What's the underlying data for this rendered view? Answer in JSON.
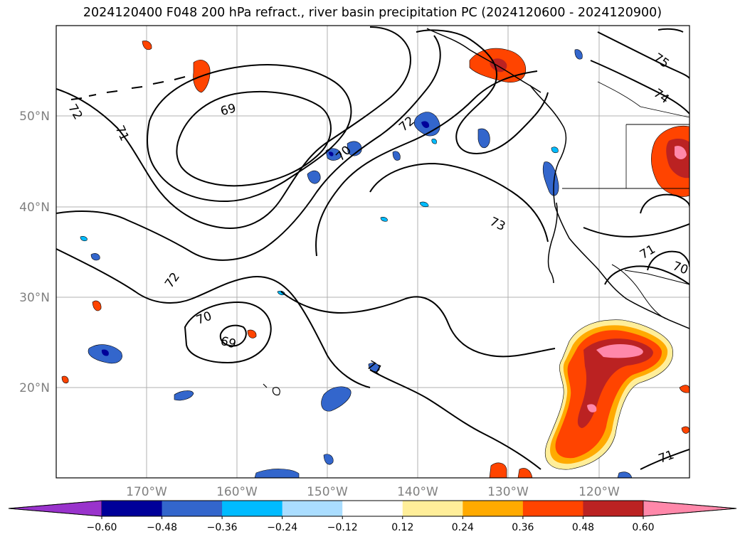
{
  "title": "2024120400 F048 200 hPa refract., river basin precipitation PC (2024120600 - 2024120900)",
  "lat_labels": [
    "50°N",
    "40°N",
    "30°N",
    "20°N"
  ],
  "lon_labels": [
    "170°W",
    "160°W",
    "150°W",
    "140°W",
    "130°W",
    "120°W"
  ],
  "contour_labels": [
    "72",
    "71",
    "69",
    "70",
    "72",
    "73",
    "72",
    "70",
    "69",
    "71",
    "75",
    "74",
    "71",
    "70",
    "71"
  ],
  "colorbar": {
    "ticks": [
      "−0.60",
      "−0.48",
      "−0.36",
      "−0.24",
      "−0.12",
      "0.12",
      "0.24",
      "0.36",
      "0.48",
      "0.60"
    ],
    "colors": [
      "#9933cc",
      "#000099",
      "#3366cc",
      "#00bbff",
      "#aaddff",
      "#ffffff",
      "#ffee99",
      "#ffaa00",
      "#ff4400",
      "#bb2222",
      "#ff88aa"
    ]
  }
}
